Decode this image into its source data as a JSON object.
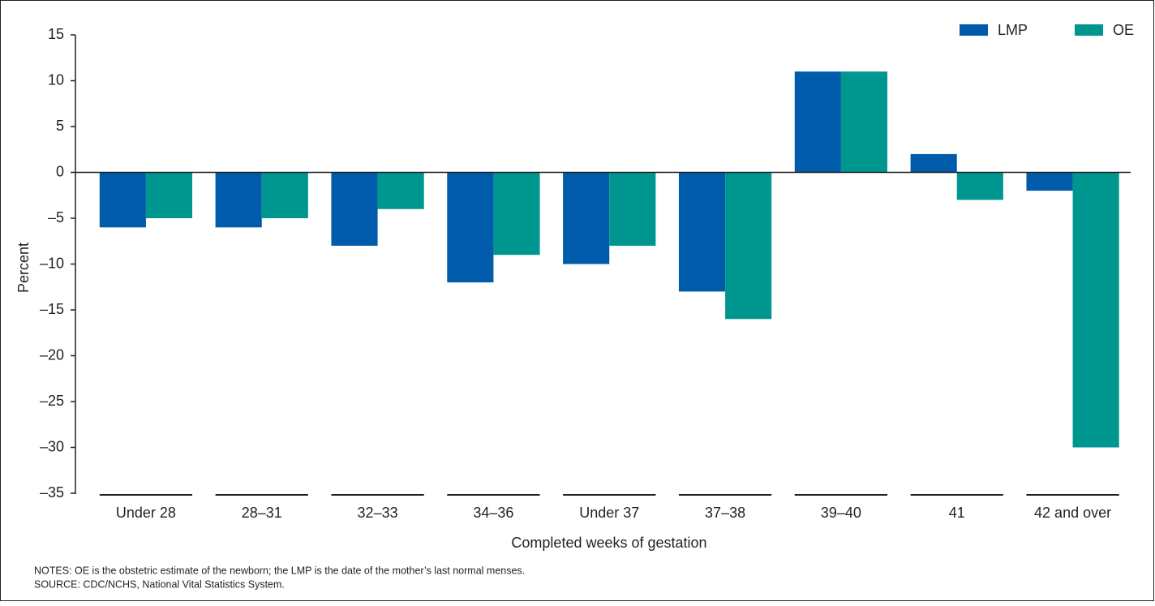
{
  "chart_data": {
    "type": "bar",
    "categories": [
      "Under 28",
      "28–31",
      "32–33",
      "34–36",
      "Under 37",
      "37–38",
      "39–40",
      "41",
      "42 and over"
    ],
    "series": [
      {
        "name": "LMP",
        "color": "#005baa",
        "values": [
          -6,
          -6,
          -8,
          -12,
          -10,
          -13,
          11,
          2,
          -2
        ]
      },
      {
        "name": "OE",
        "color": "#009690",
        "values": [
          -5,
          -5,
          -4,
          -9,
          -8,
          -16,
          11,
          -3,
          -30
        ]
      }
    ],
    "ylim": [
      -35,
      15
    ],
    "yticks": [
      15,
      10,
      5,
      0,
      {
        "value": -5,
        "label": "–5"
      },
      {
        "value": -10,
        "label": "–10"
      },
      {
        "value": -15,
        "label": "–15"
      },
      {
        "value": -20,
        "label": "–20"
      },
      {
        "value": -25,
        "label": "–25"
      },
      {
        "value": -30,
        "label": "–30"
      },
      {
        "value": -35,
        "label": "–35"
      }
    ],
    "y_label": "Percent",
    "x_label": "Completed weeks of gestation",
    "legend": "top-right",
    "notes": "NOTES: OE is the obstetric estimate of the newborn; the LMP is the date of the mother’s last normal menses.",
    "source": "SOURCE: CDC/NCHS, National Vital Statistics System."
  }
}
